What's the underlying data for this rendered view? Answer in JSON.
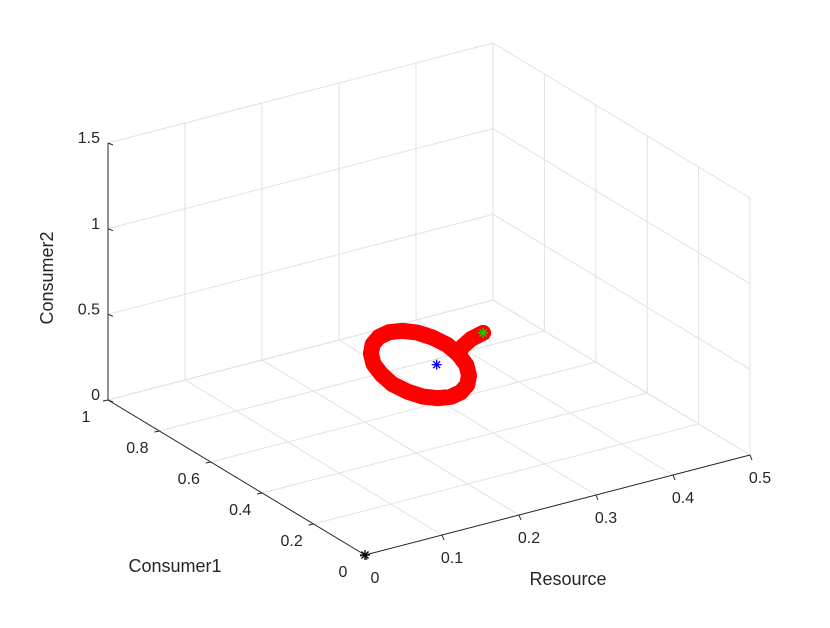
{
  "chart_data": {
    "type": "line3d",
    "xlabel": "Resource",
    "ylabel": "Consumer1",
    "zlabel": "Consumer2",
    "xlim": [
      0,
      0.5
    ],
    "ylim": [
      0,
      1
    ],
    "zlim": [
      0,
      1.5
    ],
    "xticks": [
      0,
      0.1,
      0.2,
      0.3,
      0.4,
      0.5
    ],
    "yticks": [
      0,
      0.2,
      0.4,
      0.6,
      0.8,
      1
    ],
    "zticks": [
      0,
      0.5,
      1,
      1.5
    ],
    "grid": true,
    "series": [
      {
        "mode": "line",
        "color": "#ff0000",
        "x": [
          0.335,
          0.333,
          0.325,
          0.314,
          0.3,
          0.285,
          0.27,
          0.256,
          0.245,
          0.237,
          0.235,
          0.237,
          0.245,
          0.256,
          0.27,
          0.285,
          0.3,
          0.314,
          0.325,
          0.333,
          0.335
        ],
        "y": [
          0.64,
          0.677,
          0.711,
          0.737,
          0.754,
          0.76,
          0.754,
          0.737,
          0.711,
          0.677,
          0.64,
          0.603,
          0.569,
          0.543,
          0.526,
          0.52,
          0.526,
          0.543,
          0.569,
          0.603,
          0.64
        ],
        "z": [
          0.2,
          0.225,
          0.247,
          0.265,
          0.276,
          0.28,
          0.276,
          0.265,
          0.247,
          0.225,
          0.2,
          0.175,
          0.153,
          0.135,
          0.124,
          0.12,
          0.124,
          0.135,
          0.153,
          0.175,
          0.2
        ]
      },
      {
        "mode": "line",
        "color": "#ff0000",
        "x": [
          0.377,
          0.36,
          0.345,
          0.335
        ],
        "y": [
          0.67,
          0.665,
          0.655,
          0.64
        ],
        "z": [
          0.25,
          0.24,
          0.22,
          0.2
        ]
      },
      {
        "mode": "marker",
        "color": "#00dd00",
        "x": [
          0.377
        ],
        "y": [
          0.67
        ],
        "z": [
          0.25
        ]
      },
      {
        "mode": "marker",
        "color": "#0000ff",
        "x": [
          0.3
        ],
        "y": [
          0.62
        ],
        "z": [
          0.2
        ]
      },
      {
        "mode": "marker",
        "color": "#000000",
        "x": [
          0
        ],
        "y": [
          0
        ],
        "z": [
          0
        ]
      }
    ]
  }
}
